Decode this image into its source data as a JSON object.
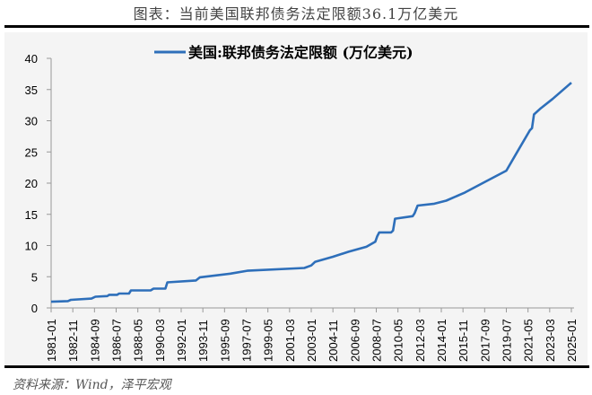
{
  "header": {
    "title": "图表：当前美国联邦债务法定限额36.1万亿美元"
  },
  "footer": {
    "source": "资料来源：Wind，泽平宏观"
  },
  "chart_data": {
    "type": "line",
    "title": "",
    "xlabel": "",
    "ylabel": "",
    "ylim": [
      0,
      40
    ],
    "yticks": [
      0,
      5,
      10,
      15,
      20,
      25,
      30,
      35,
      40
    ],
    "grid": false,
    "legend": "top-center",
    "xticks": [
      "1981-01",
      "1982-11",
      "1984-09",
      "1986-07",
      "1988-05",
      "1990-03",
      "1992-01",
      "1993-11",
      "1995-09",
      "1997-07",
      "1999-05",
      "2001-03",
      "2003-01",
      "2004-11",
      "2006-09",
      "2008-07",
      "2010-05",
      "2012-03",
      "2014-01",
      "2015-11",
      "2017-09",
      "2019-07",
      "2021-05",
      "2023-03",
      "2025-01"
    ],
    "series": [
      {
        "name": "美国:联邦债务法定限额 (万亿美元)",
        "color": "#2e6fba",
        "points": [
          [
            "1981-01",
            1.0
          ],
          [
            "1982-06",
            1.1
          ],
          [
            "1982-09",
            1.3
          ],
          [
            "1984-06",
            1.5
          ],
          [
            "1984-10",
            1.8
          ],
          [
            "1985-10",
            1.9
          ],
          [
            "1985-12",
            2.1
          ],
          [
            "1986-08",
            2.1
          ],
          [
            "1986-10",
            2.3
          ],
          [
            "1987-08",
            2.3
          ],
          [
            "1987-10",
            2.8
          ],
          [
            "1989-06",
            2.8
          ],
          [
            "1989-09",
            3.1
          ],
          [
            "1990-09",
            3.1
          ],
          [
            "1990-11",
            4.1
          ],
          [
            "1993-04",
            4.4
          ],
          [
            "1993-08",
            4.9
          ],
          [
            "1996-03",
            5.5
          ],
          [
            "1997-08",
            5.95
          ],
          [
            "2002-06",
            6.4
          ],
          [
            "2003-01",
            6.8
          ],
          [
            "2003-05",
            7.4
          ],
          [
            "2004-11",
            8.2
          ],
          [
            "2006-03",
            9.0
          ],
          [
            "2007-09",
            9.8
          ],
          [
            "2008-06",
            10.6
          ],
          [
            "2008-08",
            11.5
          ],
          [
            "2008-10",
            12.1
          ],
          [
            "2009-10",
            12.1
          ],
          [
            "2009-12",
            12.4
          ],
          [
            "2010-02",
            14.3
          ],
          [
            "2011-08",
            14.7
          ],
          [
            "2011-10",
            15.2
          ],
          [
            "2012-01",
            16.4
          ],
          [
            "2013-06",
            16.7
          ],
          [
            "2014-06",
            17.2
          ],
          [
            "2016-01",
            18.5
          ],
          [
            "2018-01",
            20.5
          ],
          [
            "2019-07",
            22.0
          ],
          [
            "2020-06",
            25.0
          ],
          [
            "2021-07",
            28.5
          ],
          [
            "2021-09",
            28.8
          ],
          [
            "2021-11",
            31.0
          ],
          [
            "2022-06",
            32.0
          ],
          [
            "2023-06",
            33.5
          ],
          [
            "2025-01",
            36.1
          ]
        ]
      }
    ]
  }
}
